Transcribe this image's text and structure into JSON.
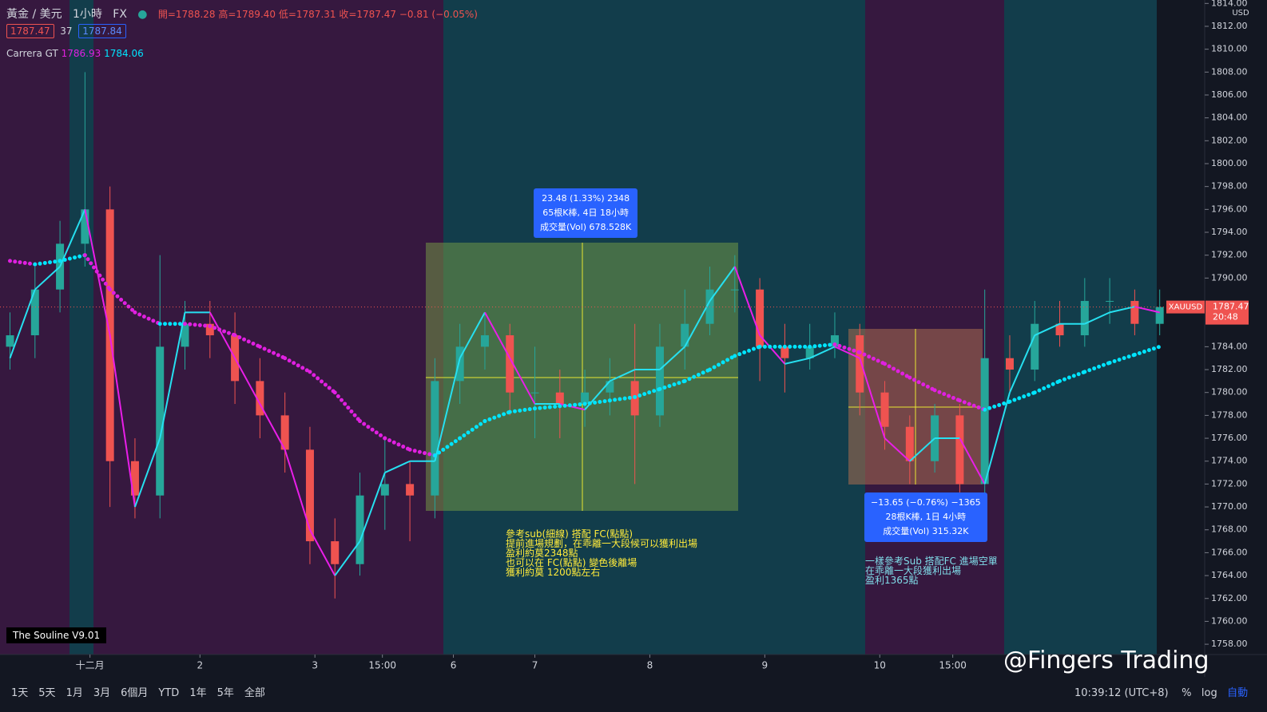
{
  "header": {
    "symbol": "黃金 / 美元",
    "interval": "1小時",
    "exchange": "FX",
    "ohlc": "開=1788.28 高=1789.40 低=1787.31 收=1787.47 −0.81 (−0.05%)",
    "bid": "1787.47",
    "spread": "37",
    "ask": "1787.84"
  },
  "legend": {
    "indicator": "Carrera GT",
    "value1": "1786.93",
    "value2": "1784.06",
    "watermark": "The Souline V9.01"
  },
  "chart_data": {
    "type": "candlestick",
    "symbol_tag": "XAUUSD",
    "last_price": 1787.47,
    "countdown": "20:48",
    "currency": "USD",
    "up_color": "#26a69a",
    "down_color": "#ef5350",
    "x": [
      2,
      7,
      12,
      17,
      22,
      27,
      32,
      37,
      42,
      47,
      52,
      57,
      62,
      67,
      72,
      77,
      82,
      87,
      92,
      97,
      102,
      107,
      112,
      117,
      122,
      127,
      132,
      137,
      142,
      147,
      152,
      157,
      162,
      167,
      172,
      177,
      182,
      187,
      192,
      197,
      202,
      207,
      212,
      217,
      222,
      227,
      232
    ],
    "open": [
      1784,
      1785,
      1789,
      1793,
      1796,
      1774,
      1771,
      1784,
      1786,
      1785,
      1781,
      1778,
      1775,
      1767,
      1765,
      1771,
      1772,
      1771,
      1781,
      1784,
      1785,
      1780,
      1780,
      1779,
      1780,
      1781,
      1778,
      1784,
      1786,
      1789,
      1789,
      1784,
      1783,
      1784,
      1785,
      1780,
      1777,
      1774,
      1778,
      1772,
      1783,
      1782,
      1786,
      1785,
      1788,
      1788,
      1786
    ],
    "high": [
      1787,
      1791,
      1795,
      1808,
      1798,
      1776,
      1792,
      1788,
      1788,
      1787,
      1783,
      1780,
      1777,
      1769,
      1773,
      1776,
      1774,
      1783,
      1786,
      1787,
      1786,
      1784,
      1782,
      1782,
      1783,
      1786,
      1786,
      1789,
      1791,
      1792,
      1790,
      1786,
      1786,
      1787,
      1786,
      1781,
      1778,
      1779,
      1779,
      1789,
      1785,
      1788,
      1788,
      1790,
      1790,
      1789,
      1789
    ],
    "low": [
      1782,
      1783,
      1787,
      1791,
      1770,
      1769,
      1769,
      1782,
      1783,
      1779,
      1776,
      1773,
      1765,
      1762,
      1764,
      1768,
      1767,
      1769,
      1779,
      1782,
      1778,
      1776,
      1776,
      1777,
      1778,
      1772,
      1777,
      1782,
      1785,
      1787,
      1781,
      1780,
      1782,
      1783,
      1778,
      1775,
      1772,
      1773,
      1770,
      1771,
      1780,
      1781,
      1784,
      1784,
      1786,
      1785,
      1785
    ],
    "close": [
      1785,
      1789,
      1793,
      1796,
      1774,
      1771,
      1784,
      1786,
      1785,
      1781,
      1778,
      1775,
      1767,
      1765,
      1771,
      1772,
      1771,
      1781,
      1784,
      1785,
      1780,
      1780,
      1779,
      1780,
      1781,
      1778,
      1784,
      1786,
      1789,
      1789,
      1784,
      1783,
      1784,
      1785,
      1780,
      1777,
      1774,
      1778,
      1772,
      1783,
      1782,
      1786,
      1785,
      1788,
      1788,
      1786,
      1787.47
    ],
    "indicators": [
      {
        "style": "line",
        "up_color": "#26e0f0",
        "down_color": "#e91ee8",
        "values": [
          1783,
          1789,
          1791,
          1796,
          1785,
          1770,
          1776,
          1787,
          1787,
          1783,
          1779,
          1775,
          1768,
          1764,
          1767,
          1773,
          1774,
          1774,
          1783,
          1787,
          1783,
          1779,
          1779,
          1778.5,
          1781,
          1782,
          1782,
          1784,
          1788,
          1791,
          1785,
          1782.5,
          1783,
          1784,
          1783,
          1776,
          1774,
          1776,
          1776,
          1772,
          1780,
          1785,
          1786,
          1786,
          1787,
          1787.5,
          1787
        ]
      },
      {
        "style": "dots",
        "up_color": "#00e5ff",
        "down_color": "#e020e0",
        "values": [
          1791.5,
          1791.2,
          1791.5,
          1792,
          1789,
          1787,
          1786,
          1786,
          1785.8,
          1785,
          1784,
          1783,
          1781.8,
          1780,
          1777.5,
          1776,
          1775,
          1774.5,
          1776,
          1777.5,
          1778.3,
          1778.6,
          1778.8,
          1779,
          1779.3,
          1779.6,
          1780.3,
          1781,
          1782,
          1783.2,
          1784,
          1784,
          1784,
          1784.2,
          1783.5,
          1782.5,
          1781.3,
          1780.2,
          1779.3,
          1778.5,
          1779.2,
          1780,
          1781,
          1781.8,
          1782.6,
          1783.3,
          1784
        ]
      }
    ],
    "xlim": [
      0,
      241
    ],
    "ylim": [
      1757.1,
      1814.3
    ],
    "xticks": [
      {
        "value": 18,
        "label": "十二月"
      },
      {
        "value": 40,
        "label": "2"
      },
      {
        "value": 63,
        "label": "3"
      },
      {
        "value": 76.5,
        "label": "15:00"
      },
      {
        "value": 90.7,
        "label": "6"
      },
      {
        "value": 107,
        "label": "7"
      },
      {
        "value": 130,
        "label": "8"
      },
      {
        "value": 153,
        "label": "9"
      },
      {
        "value": 176,
        "label": "10"
      },
      {
        "value": 190.6,
        "label": "15:00"
      }
    ],
    "yticks": [
      {
        "value": 1758,
        "label": "1758.00"
      },
      {
        "value": 1760,
        "label": "1760.00"
      },
      {
        "value": 1762,
        "label": "1762.00"
      },
      {
        "value": 1764,
        "label": "1764.00"
      },
      {
        "value": 1766,
        "label": "1766.00"
      },
      {
        "value": 1768,
        "label": "1768.00"
      },
      {
        "value": 1770,
        "label": "1770.00"
      },
      {
        "value": 1772,
        "label": "1772.00"
      },
      {
        "value": 1774,
        "label": "1774.00"
      },
      {
        "value": 1776,
        "label": "1776.00"
      },
      {
        "value": 1778,
        "label": "1778.00"
      },
      {
        "value": 1780,
        "label": "1780.00"
      },
      {
        "value": 1782,
        "label": "1782.00"
      },
      {
        "value": 1784,
        "label": "1784.00"
      },
      {
        "value": 1790,
        "label": "1790.00"
      },
      {
        "value": 1792,
        "label": "1792.00"
      },
      {
        "value": 1794,
        "label": "1794.00"
      },
      {
        "value": 1796,
        "label": "1796.00"
      },
      {
        "value": 1798,
        "label": "1798.00"
      },
      {
        "value": 1800,
        "label": "1800.00"
      },
      {
        "value": 1802,
        "label": "1802.00"
      },
      {
        "value": 1804,
        "label": "1804.00"
      },
      {
        "value": 1806,
        "label": "1806.00"
      },
      {
        "value": 1808,
        "label": "1808.00"
      },
      {
        "value": 1810,
        "label": "1810.00"
      },
      {
        "value": 1812,
        "label": "1812.00"
      },
      {
        "value": 1814,
        "label": "1814.00"
      }
    ]
  },
  "annotations": {
    "long_measure": [
      "23.48 (1.33%) 2348",
      "65根K棒, 4日 18小時",
      "成交量(Vol) 678.528K"
    ],
    "short_measure": [
      "−13.65 (−0.76%) −1365",
      "28根K棒, 1日 4小時",
      "成交量(Vol) 315.32K"
    ],
    "long_note": [
      "參考sub(細線) 搭配 FC(點點)",
      "提前進場規劃，在乖離一大段候可以獲利出場",
      "盈利約莫2348點",
      "也可以在 FC(點點) 變色後離場",
      "獲利約莫 1200點左右"
    ],
    "short_note": [
      "一樣參考Sub 搭配FC 進場空單",
      "在乖離一大段獲利出場",
      "盈利1365點"
    ]
  },
  "footer": {
    "ranges": [
      "1天",
      "5天",
      "1月",
      "3月",
      "6個月",
      "YTD",
      "1年",
      "5年",
      "全部"
    ],
    "clock": "10:39:12 (UTC+8)",
    "percent": "%",
    "log": "log",
    "auto": "自動",
    "brand": "@Fingers Trading"
  }
}
